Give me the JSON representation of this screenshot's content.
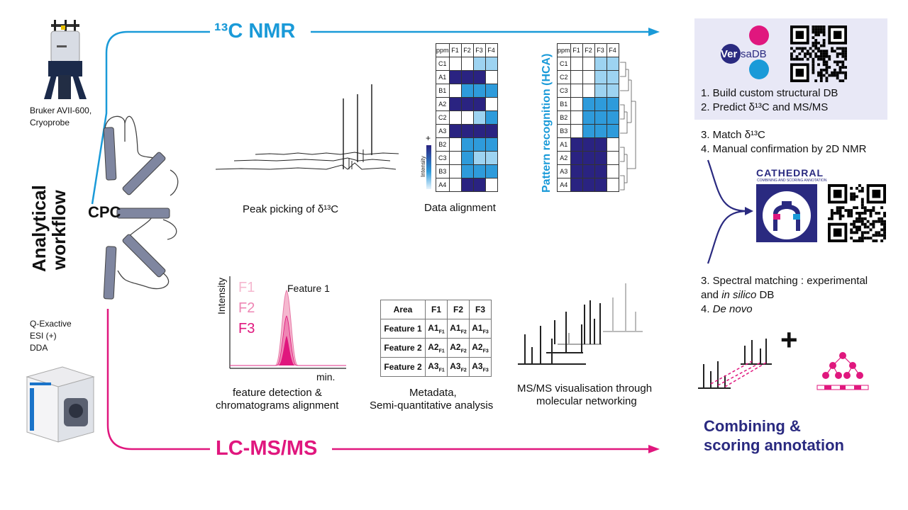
{
  "title_nmr": "¹³C NMR",
  "title_lcms": "LC-MS/MS",
  "instrument_nmr": [
    "Bruker AVII-600,",
    "Cryoprobe"
  ],
  "instrument_ms": [
    "Q-Exactive",
    "ESI (+)",
    "DDA"
  ],
  "workflow_label": [
    "Analytical",
    "workflow"
  ],
  "cpc_label": "CPC",
  "caption_peak": "Peak picking of δ¹³C",
  "caption_alignment": "Data alignment",
  "caption_feature": [
    "feature detection &",
    "chromatograms alignment"
  ],
  "caption_metadata": [
    "Metadata,",
    "Semi-quantitative analysis"
  ],
  "caption_msms": [
    "MS/MS visualisation through",
    "molecular networking"
  ],
  "pattern_label": "Pattern recognition (HCA)",
  "intensity_label": "Intensity",
  "plus_sign": "+",
  "chrom": {
    "y_label": "Intensity",
    "x_label": "min.",
    "f1": "F1",
    "f2": "F2",
    "f3": "F3",
    "feature": "Feature 1"
  },
  "alignment_table": {
    "header": [
      "ppm",
      "F1",
      "F2",
      "F3",
      "F4"
    ],
    "rows": [
      {
        "label": "C1",
        "cells": [
          0,
          0,
          1,
          1
        ]
      },
      {
        "label": "A1",
        "cells": [
          3,
          3,
          3,
          0
        ]
      },
      {
        "label": "B1",
        "cells": [
          0,
          2,
          2,
          2
        ]
      },
      {
        "label": "A2",
        "cells": [
          3,
          3,
          3,
          0
        ]
      },
      {
        "label": "C2",
        "cells": [
          0,
          0,
          1,
          2
        ]
      },
      {
        "label": "A3",
        "cells": [
          3,
          3,
          3,
          3
        ]
      },
      {
        "label": "B2",
        "cells": [
          0,
          2,
          2,
          2
        ]
      },
      {
        "label": "C3",
        "cells": [
          0,
          2,
          1,
          1
        ]
      },
      {
        "label": "B3",
        "cells": [
          0,
          2,
          2,
          2
        ]
      },
      {
        "label": "A4",
        "cells": [
          0,
          3,
          3,
          0
        ]
      }
    ]
  },
  "hca_table": {
    "header": [
      "ppm",
      "F1",
      "F2",
      "F3",
      "F4"
    ],
    "rows": [
      {
        "label": "C1",
        "cells": [
          0,
          0,
          1,
          1
        ]
      },
      {
        "label": "C2",
        "cells": [
          0,
          0,
          1,
          1
        ]
      },
      {
        "label": "C3",
        "cells": [
          0,
          0,
          1,
          1
        ]
      },
      {
        "label": "B1",
        "cells": [
          0,
          2,
          2,
          2
        ]
      },
      {
        "label": "B2",
        "cells": [
          0,
          2,
          2,
          2
        ]
      },
      {
        "label": "B3",
        "cells": [
          0,
          2,
          2,
          2
        ]
      },
      {
        "label": "A1",
        "cells": [
          3,
          3,
          3,
          0
        ]
      },
      {
        "label": "A2",
        "cells": [
          3,
          3,
          3,
          0
        ]
      },
      {
        "label": "A3",
        "cells": [
          3,
          3,
          3,
          0
        ]
      },
      {
        "label": "A4",
        "cells": [
          3,
          3,
          3,
          0
        ]
      }
    ]
  },
  "area_table": {
    "header": [
      "Area",
      "F1",
      "F2",
      "F3"
    ],
    "rows": [
      {
        "label": "Feature 1",
        "cells": [
          [
            "A1",
            "F1"
          ],
          [
            "A1",
            "F2"
          ],
          [
            "A1",
            "F3"
          ]
        ]
      },
      {
        "label": "Feature 2",
        "cells": [
          [
            "A2",
            "F1"
          ],
          [
            "A2",
            "F2"
          ],
          [
            "A2",
            "F3"
          ]
        ]
      },
      {
        "label": "Feature 2",
        "cells": [
          [
            "A3",
            "F1"
          ],
          [
            "A3",
            "F2"
          ],
          [
            "A3",
            "F3"
          ]
        ]
      }
    ]
  },
  "versadb": {
    "ver": "Ver",
    "sadb": "saDB"
  },
  "steps_nmr": [
    "1. Build custom structural DB",
    "2. Predict δ¹³C and MS/MS"
  ],
  "steps_match": [
    "3. Match δ¹³C",
    "4. Manual confirmation by 2D NMR"
  ],
  "steps_ms": [
    "3. Spectral matching : experimental",
    "and ",
    "in silico",
    " DB",
    "4. ",
    "De novo"
  ],
  "cathedral": {
    "name": "CATHEDRAL",
    "subtitle": "COMBINING AND SCORING ANNOTATION"
  },
  "combining": [
    "Combining &",
    "scoring annotation"
  ],
  "colors": {
    "nmr_blue": "#1a9ad8",
    "ms_pink": "#e0177e",
    "navy": "#2a2a80",
    "light_blue": "#9dd3f1",
    "mid_blue": "#2e9bdb",
    "dark_blue": "#2a2381",
    "pink_light": "#f5b8cf"
  }
}
